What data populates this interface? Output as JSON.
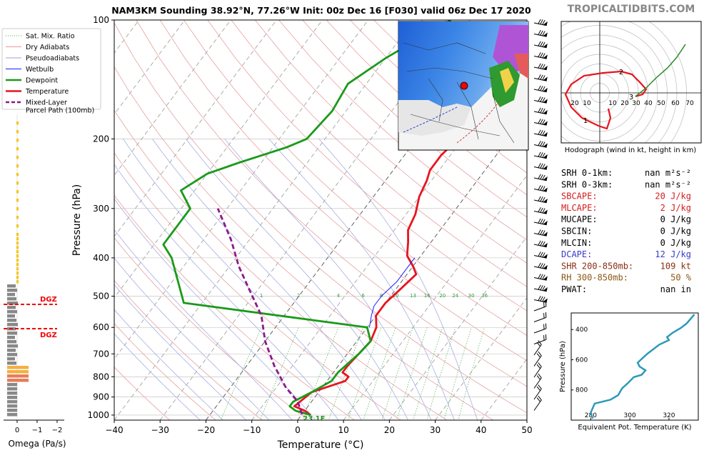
{
  "title": "NAM3KM Sounding 38.92°N, 77.26°W Init: 00z Dec 16 [F030] valid 06z Dec 17 2020",
  "watermark": "TROPICALTIDBITS.COM",
  "legend": {
    "items": [
      {
        "label": "Sat. Mix. Ratio",
        "color": "#4caf50",
        "style": "dotted"
      },
      {
        "label": "Dry Adiabats",
        "color": "#e57373",
        "style": "solid-thin"
      },
      {
        "label": "Pseudoadiabats",
        "color": "#7986cb",
        "style": "solid-thin"
      },
      {
        "label": "Wetbulb",
        "color": "#1a1aff",
        "style": "solid"
      },
      {
        "label": "Dewpoint",
        "color": "#1a9a1a",
        "style": "solid-thick"
      },
      {
        "label": "Temperature",
        "color": "#e8141e",
        "style": "solid-thick"
      },
      {
        "label": "Mixed-Layer\nParcel Path (100mb)",
        "color": "#8b1a8b",
        "style": "dashed"
      }
    ]
  },
  "omega": {
    "xlabel": "Omega (Pa/s)",
    "ticks": [
      "0",
      "−1",
      "−2"
    ],
    "dgz_label": "DGZ"
  },
  "chart_data": [
    {
      "type": "line",
      "title": "NAM3KM Sounding 38.92°N, 77.26°W Init: 00z Dec 16 [F030] valid 06z Dec 17 2020",
      "xlabel": "Temperature (°C)",
      "ylabel": "Pressure (hPa)",
      "xlim": [
        -40,
        50
      ],
      "ylim": [
        1030,
        100
      ],
      "x_ticks": [
        -40,
        -30,
        -20,
        -10,
        0,
        10,
        20,
        30,
        40,
        50
      ],
      "y_ticks": [
        100,
        200,
        300,
        400,
        500,
        600,
        700,
        800,
        900,
        1000
      ],
      "series": [
        {
          "name": "Temperature",
          "color": "#e8141e",
          "points": [
            [
              2,
              1000
            ],
            [
              0,
              975
            ],
            [
              -3,
              950
            ],
            [
              -2.5,
              925
            ],
            [
              -1.5,
              875
            ],
            [
              4,
              820
            ],
            [
              4,
              800
            ],
            [
              2,
              780
            ],
            [
              2,
              750
            ],
            [
              2.5,
              700
            ],
            [
              3,
              650
            ],
            [
              2,
              600
            ],
            [
              0,
              560
            ],
            [
              0,
              520
            ],
            [
              1,
              480
            ],
            [
              2,
              440
            ],
            [
              0,
              420
            ],
            [
              -3,
              395
            ],
            [
              -5,
              365
            ],
            [
              -7,
              340
            ],
            [
              -8,
              310
            ],
            [
              -10,
              280
            ],
            [
              -11,
              255
            ],
            [
              -12,
              240
            ],
            [
              -12,
              220
            ],
            [
              -11,
              200
            ],
            [
              -9,
              180
            ],
            [
              -7,
              165
            ],
            [
              -6,
              145
            ],
            [
              -5,
              130
            ],
            [
              -4,
              115
            ],
            [
              -3,
              100
            ]
          ]
        },
        {
          "name": "Dewpoint",
          "color": "#1a9a1a",
          "points": [
            [
              2,
              1000
            ],
            [
              -2,
              975
            ],
            [
              -4,
              950
            ],
            [
              -4,
              925
            ],
            [
              -1.5,
              875
            ],
            [
              1,
              820
            ],
            [
              1,
              780
            ],
            [
              2.5,
              700
            ],
            [
              3,
              650
            ],
            [
              0,
              600
            ],
            [
              -44,
              520
            ],
            [
              -54,
              400
            ],
            [
              -58,
              370
            ],
            [
              -58,
              300
            ],
            [
              -63,
              270
            ],
            [
              -60,
              245
            ],
            [
              -55,
              230
            ],
            [
              -47,
              210
            ],
            [
              -44,
              200
            ],
            [
              -43,
              170
            ],
            [
              -44,
              145
            ],
            [
              -40,
              125
            ],
            [
              -32,
              100
            ]
          ]
        },
        {
          "name": "Wetbulb",
          "color": "#1a1aff",
          "points": [
            [
              -1,
              400
            ],
            [
              -1,
              430
            ],
            [
              -1,
              460
            ],
            [
              -2,
              500
            ],
            [
              -2,
              530
            ],
            [
              -1,
              560
            ],
            [
              0.5,
              600
            ]
          ]
        },
        {
          "name": "Mixed-Layer Parcel Path (100mb)",
          "color": "#8b1a8b",
          "points": [
            [
              0,
              995
            ],
            [
              -3,
              925
            ],
            [
              -8,
              850
            ],
            [
              -14,
              750
            ],
            [
              -20,
              650
            ],
            [
              -25,
              560
            ],
            [
              -32,
              480
            ],
            [
              -38,
              420
            ],
            [
              -44,
              360
            ],
            [
              -52,
              300
            ]
          ]
        }
      ],
      "isotherm_labels": [
        "1",
        "2",
        "4",
        "6",
        "8",
        "10",
        "13",
        "16",
        "20",
        "24",
        "30",
        "36"
      ],
      "surface_label": "23 1F"
    },
    {
      "type": "line",
      "title": "Hodograph (wind in kt, height in km)",
      "ring_labels": [
        "20",
        "10",
        "10",
        "20",
        "30",
        "40",
        "50",
        "60",
        "70"
      ],
      "height_labels": [
        "1",
        "2",
        "3"
      ]
    },
    {
      "type": "line",
      "title": "",
      "xlabel": "Equivalent Pot. Temperature (K)",
      "ylabel": "Pressure (hPa)",
      "xlim": [
        270,
        335
      ],
      "ylim": [
        1000,
        290
      ],
      "x_ticks": [
        280,
        300,
        320
      ],
      "y_ticks": [
        400,
        600,
        800
      ],
      "series": [
        {
          "name": "",
          "color": "#2f99b8",
          "points": [
            [
              281,
              990
            ],
            [
              280,
              950
            ],
            [
              282,
              890
            ],
            [
              290,
              865
            ],
            [
              294,
              835
            ],
            [
              296,
              790
            ],
            [
              299,
              755
            ],
            [
              302,
              715
            ],
            [
              306,
              700
            ],
            [
              308,
              670
            ],
            [
              305,
              645
            ],
            [
              304,
              620
            ],
            [
              306,
              595
            ],
            [
              309,
              560
            ],
            [
              312,
              530
            ],
            [
              315,
              500
            ],
            [
              320,
              470
            ],
            [
              319,
              450
            ],
            [
              322,
              420
            ],
            [
              326,
              390
            ],
            [
              329,
              360
            ],
            [
              331,
              330
            ],
            [
              333,
              300
            ]
          ]
        }
      ]
    }
  ],
  "indices": [
    {
      "label": "SRH 0-1km:",
      "value": "nan m²s⁻²",
      "color": "#000000"
    },
    {
      "label": "SRH 0-3km:",
      "value": "nan m²s⁻²",
      "color": "#000000"
    },
    {
      "label": "SBCAPE:",
      "value": "20 J/kg",
      "color": "#d21e1e"
    },
    {
      "label": "MLCAPE:",
      "value": "2 J/kg",
      "color": "#d21e1e"
    },
    {
      "label": "MUCAPE:",
      "value": "0 J/kg",
      "color": "#000000"
    },
    {
      "label": "SBCIN:",
      "value": "0 J/kg",
      "color": "#000000"
    },
    {
      "label": "MLCIN:",
      "value": "0 J/kg",
      "color": "#000000"
    },
    {
      "label": "DCAPE:",
      "value": "12 J/kg",
      "color": "#3a3acc"
    },
    {
      "label": "SHR 200-850mb:",
      "value": "109 kt",
      "color": "#8b2e16"
    },
    {
      "label": "RH 300-850mb:",
      "value": "50 %",
      "color": "#8b5a16"
    },
    {
      "label": "PWAT:",
      "value": "nan in",
      "color": "#000000"
    }
  ]
}
